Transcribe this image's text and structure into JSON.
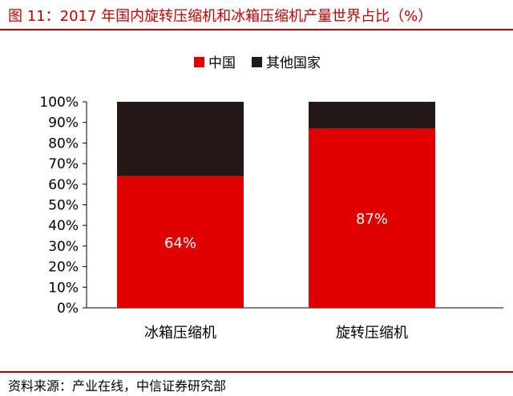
{
  "title": "图 11：2017 年国内旋转压缩机和冰箱压缩机产量世界占比（%）",
  "source": "资料来源：产业在线，中信证券研究部",
  "colors": {
    "china": "#e00000",
    "other": "#231816",
    "accent": "#c00000"
  },
  "chart_data": {
    "type": "bar",
    "stacked": true,
    "categories": [
      "冰箱压缩机",
      "旋转压缩机"
    ],
    "series": [
      {
        "name": "中国",
        "values": [
          64,
          87
        ],
        "labels": [
          "64%",
          "87%"
        ]
      },
      {
        "name": "其他国家",
        "values": [
          36,
          13
        ]
      }
    ],
    "ylim": [
      0,
      100
    ],
    "yticks": [
      "0%",
      "10%",
      "20%",
      "30%",
      "40%",
      "50%",
      "60%",
      "70%",
      "80%",
      "90%",
      "100%"
    ],
    "legend_position": "top",
    "grid": false
  }
}
